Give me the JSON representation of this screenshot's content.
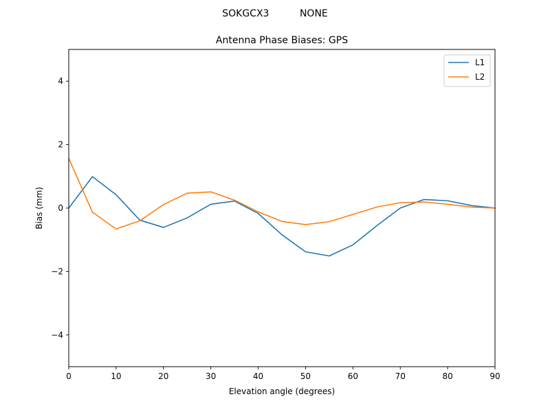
{
  "figure": {
    "suptitle": "SOKGCX3          NONE"
  },
  "chart_data": {
    "type": "line",
    "title": "Antenna Phase Biases: GPS",
    "xlabel": "Elevation angle (degrees)",
    "ylabel": "Bias (mm)",
    "xlim": [
      0,
      90
    ],
    "ylim": [
      -5,
      5
    ],
    "x_ticks": [
      0,
      10,
      20,
      30,
      40,
      50,
      60,
      70,
      80,
      90
    ],
    "x_tick_labels": [
      "0",
      "10",
      "20",
      "30",
      "40",
      "50",
      "60",
      "70",
      "80",
      "90"
    ],
    "y_ticks": [
      -4,
      -2,
      0,
      2,
      4
    ],
    "y_tick_labels": [
      "−4",
      "−2",
      "0",
      "2",
      "4"
    ],
    "grid": false,
    "legend_position": "upper-right",
    "x": [
      0,
      5,
      10,
      15,
      20,
      25,
      30,
      35,
      40,
      45,
      50,
      55,
      60,
      65,
      70,
      75,
      80,
      85,
      90
    ],
    "series": [
      {
        "name": "L1",
        "color": "#1f77b4",
        "values": [
          0.0,
          0.99,
          0.42,
          -0.38,
          -0.61,
          -0.31,
          0.12,
          0.22,
          -0.17,
          -0.84,
          -1.38,
          -1.51,
          -1.16,
          -0.56,
          0.0,
          0.27,
          0.23,
          0.08,
          0.0
        ]
      },
      {
        "name": "L2",
        "color": "#ff7f0e",
        "values": [
          1.57,
          -0.13,
          -0.66,
          -0.4,
          0.11,
          0.47,
          0.51,
          0.25,
          -0.12,
          -0.42,
          -0.52,
          -0.43,
          -0.2,
          0.03,
          0.17,
          0.19,
          0.12,
          0.03,
          0.0
        ]
      }
    ]
  }
}
